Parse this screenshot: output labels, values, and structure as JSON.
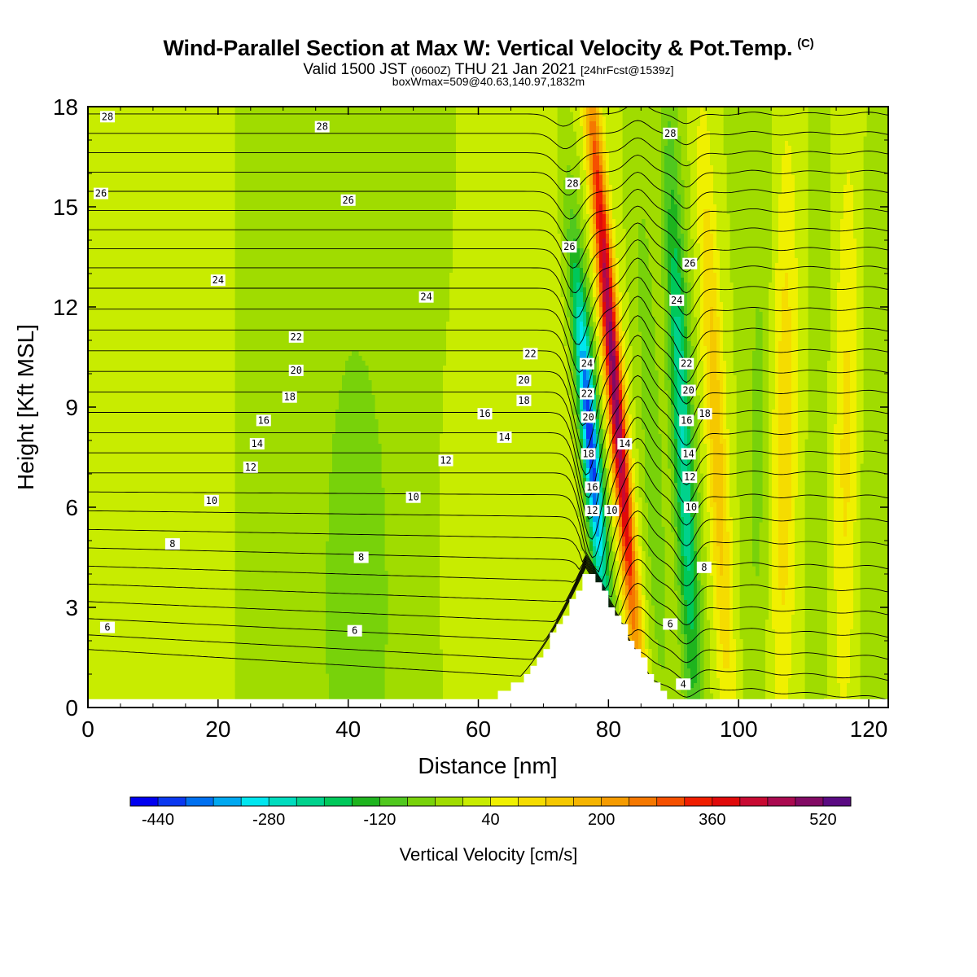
{
  "header": {
    "title": "Wind-Parallel Section at Max W: Vertical Velocity & Pot.Temp.",
    "copyright": "(C)",
    "valid_prefix": "Valid 1500 JST",
    "valid_utc": "(0600Z)",
    "valid_date": "THU 21 Jan 2021",
    "forecast": "[24hrFcst@1539z]",
    "boxwmax": "boxWmax=509@40.63,140.97,1832m"
  },
  "chart_data": {
    "type": "heatmap",
    "title": "Wind-Parallel Section at Max W: Vertical Velocity & Pot.Temp.",
    "xlabel": "Distance [nm]",
    "ylabel": "Height [Kft MSL]",
    "xlim": [
      0,
      123
    ],
    "ylim": [
      0,
      18
    ],
    "x_ticks": [
      0,
      20,
      40,
      60,
      80,
      100,
      120
    ],
    "y_ticks": [
      0,
      3,
      6,
      9,
      12,
      15,
      18
    ],
    "colorbar": {
      "label": "Vertical Velocity [cm/s]",
      "tick_values": [
        -440,
        -280,
        -120,
        40,
        200,
        360,
        520
      ],
      "bins": [
        -480,
        -440,
        -400,
        -360,
        -320,
        -280,
        -240,
        -200,
        -160,
        -120,
        -80,
        -40,
        0,
        40,
        80,
        120,
        160,
        200,
        240,
        280,
        320,
        360,
        400,
        440,
        480,
        520,
        560
      ],
      "colors": [
        "#0000f0",
        "#0a38f0",
        "#0070f0",
        "#00a8f0",
        "#00e6ef",
        "#00dcbe",
        "#00d28c",
        "#00c85a",
        "#1eb41e",
        "#50c81e",
        "#78d20a",
        "#a0dc00",
        "#c8ec00",
        "#f0f000",
        "#f5dc00",
        "#f5c800",
        "#f5b400",
        "#f59b00",
        "#f57800",
        "#f55000",
        "#f01e00",
        "#e00a0a",
        "#c80a32",
        "#aa0a50",
        "#820a64",
        "#5a0a82"
      ]
    },
    "contours": {
      "variable": "Potential temperature",
      "interval": 2,
      "labels": [
        4,
        6,
        8,
        10,
        12,
        14,
        16,
        18,
        20,
        22,
        24,
        26,
        28
      ]
    },
    "w_features": [
      {
        "x": 76.8,
        "w": -430
      },
      {
        "x": 81.2,
        "w": 500
      },
      {
        "x": 86.6,
        "w": -70
      },
      {
        "x": 91.4,
        "w": -240
      },
      {
        "x": 96.6,
        "w": 150
      },
      {
        "x": 103.0,
        "w": -50
      },
      {
        "x": 107.0,
        "w": 110
      },
      {
        "x": 112.5,
        "w": -20
      },
      {
        "x": 116.5,
        "w": 90
      },
      {
        "x": 120.5,
        "w": -40
      }
    ],
    "terrain_peak": {
      "x": 76.5,
      "height": 4.2
    }
  }
}
